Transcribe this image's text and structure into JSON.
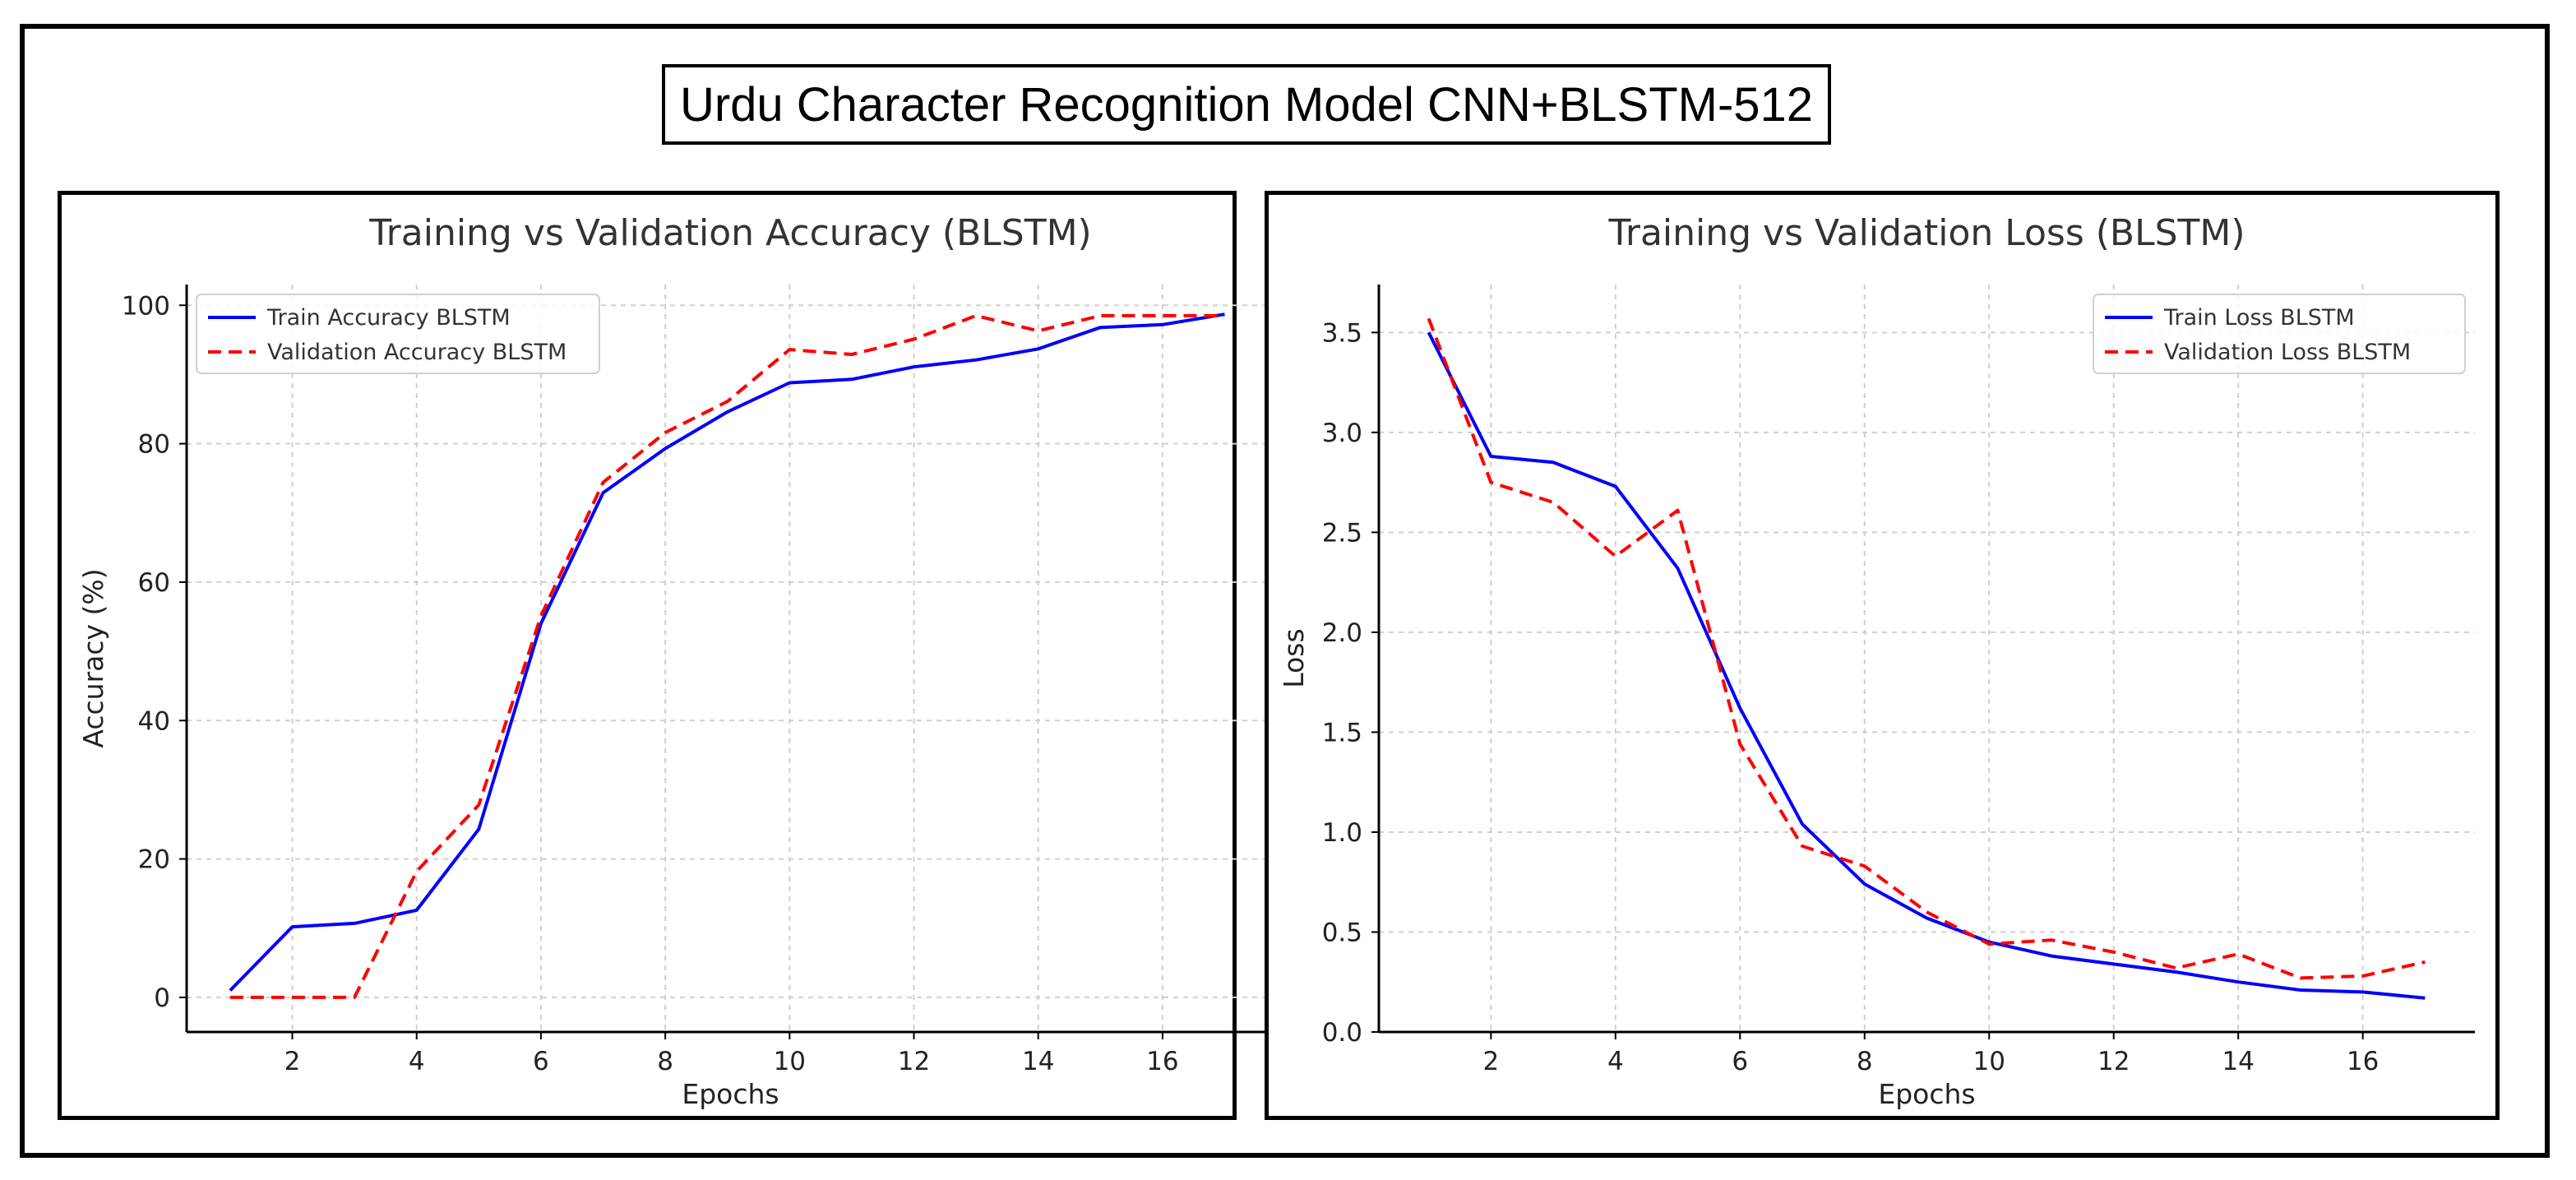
{
  "figure_title": "Urdu Character Recognition Model CNN+BLSTM-512",
  "colors": {
    "train": "#0000ff",
    "validation": "#ff0000",
    "grid": "#cfcfcf"
  },
  "chart_data": [
    {
      "type": "line",
      "title": "Training vs Validation Accuracy (BLSTM)",
      "xlabel": "Epochs",
      "ylabel": "Accuracy (%)",
      "xlim": [
        0.3,
        17.8
      ],
      "ylim": [
        -5,
        103
      ],
      "xticks": [
        2,
        4,
        6,
        8,
        10,
        12,
        14,
        16
      ],
      "yticks": [
        0,
        20,
        40,
        60,
        80,
        100
      ],
      "x": [
        1,
        2,
        3,
        4,
        5,
        6,
        7,
        8,
        9,
        10,
        11,
        12,
        13,
        14,
        15,
        16,
        17
      ],
      "legend_position": "top-left",
      "grid": true,
      "series": [
        {
          "name": "Train Accuracy BLSTM",
          "style": "solid",
          "values": [
            1,
            10.2,
            10.7,
            12.6,
            24.3,
            54,
            72.9,
            79.3,
            84.6,
            88.8,
            89.3,
            91.1,
            92.1,
            93.7,
            96.8,
            97.2,
            98.7
          ]
        },
        {
          "name": "Validation Accuracy BLSTM",
          "style": "dashed",
          "values": [
            0,
            0,
            0,
            18.2,
            27.8,
            55.1,
            74.4,
            81.6,
            86.1,
            93.6,
            92.9,
            95.1,
            98.5,
            96.3,
            98.5,
            98.5,
            98.5
          ]
        }
      ]
    },
    {
      "type": "line",
      "title": "Training vs Validation Loss (BLSTM)",
      "xlabel": "Epochs",
      "ylabel": "Loss",
      "xlim": [
        0.2,
        17.8
      ],
      "ylim": [
        0,
        3.74
      ],
      "xticks": [
        2,
        4,
        6,
        8,
        10,
        12,
        14,
        16
      ],
      "yticks": [
        0.0,
        0.5,
        1.0,
        1.5,
        2.0,
        2.5,
        3.0,
        3.5
      ],
      "ytick_labels": [
        "0.0",
        "0.5",
        "1.0",
        "1.5",
        "2.0",
        "2.5",
        "3.0",
        "3.5"
      ],
      "x": [
        1,
        2,
        3,
        4,
        5,
        6,
        7,
        8,
        9,
        10,
        11,
        12,
        13,
        14,
        15,
        16,
        17
      ],
      "legend_position": "top-right",
      "grid": true,
      "series": [
        {
          "name": "Train Loss BLSTM",
          "style": "solid",
          "values": [
            3.5,
            2.88,
            2.85,
            2.73,
            2.32,
            1.62,
            1.04,
            0.74,
            0.57,
            0.45,
            0.38,
            0.34,
            0.3,
            0.25,
            0.21,
            0.2,
            0.17
          ]
        },
        {
          "name": "Validation Loss BLSTM",
          "style": "dashed",
          "values": [
            3.57,
            2.75,
            2.65,
            2.38,
            2.61,
            1.44,
            0.93,
            0.83,
            0.6,
            0.44,
            0.46,
            0.4,
            0.32,
            0.39,
            0.27,
            0.28,
            0.35
          ]
        }
      ]
    }
  ]
}
